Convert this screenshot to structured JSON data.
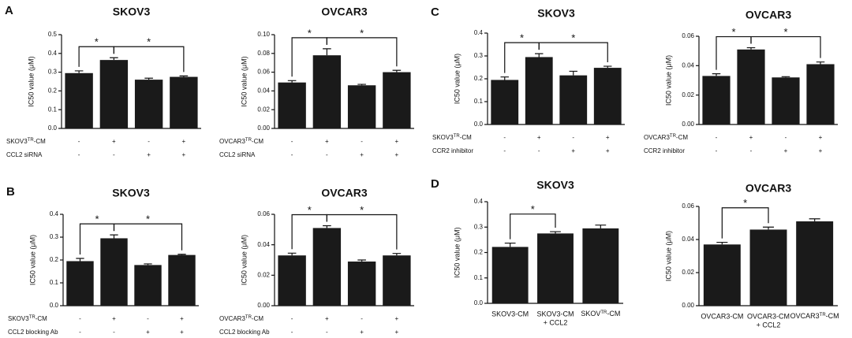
{
  "chart_data": [
    {
      "type": "bar",
      "panel": "A",
      "title": "SKOV3",
      "y_label": "IC50 value (μM)",
      "values": [
        0.295,
        0.365,
        0.26,
        0.275
      ],
      "errors": [
        0.012,
        0.012,
        0.008,
        0.005
      ],
      "color": "#1a1a1a",
      "ylim": [
        0,
        0.5
      ],
      "yticks": [
        {
          "value": 0,
          "label": "0.0"
        },
        0.1,
        0.2,
        0.3,
        0.4,
        0.5
      ],
      "brackets": [
        {
          "bars": [
            0,
            1
          ],
          "label": "*"
        },
        {
          "bars": [
            1,
            3
          ],
          "label": "*"
        }
      ],
      "rows": [
        {
          "label": {
            "main": "SKOV3",
            "sup": "TR",
            "rest": "-CM"
          },
          "signs": [
            "-",
            "+",
            "-",
            "+"
          ]
        },
        {
          "label": "CCL2 siRNA",
          "signs": [
            "-",
            "-",
            "+",
            "+"
          ]
        }
      ]
    },
    {
      "type": "bar",
      "title": "OVCAR3",
      "y_label": "IC50 value (μM)",
      "values": [
        0.049,
        0.078,
        0.046,
        0.06
      ],
      "errors": [
        0.002,
        0.007,
        0.001,
        0.002
      ],
      "color": "#1a1a1a",
      "ylim": [
        0,
        0.1
      ],
      "yticks": [
        {
          "value": 0,
          "label": "0.00"
        },
        0.02,
        0.04,
        0.06,
        0.08,
        {
          "value": 0.1,
          "label": "0.10"
        }
      ],
      "brackets": [
        {
          "bars": [
            0,
            1
          ],
          "label": "*"
        },
        {
          "bars": [
            1,
            3
          ],
          "label": "*"
        }
      ],
      "rows": [
        {
          "label": {
            "main": "OVCAR3",
            "sup": "TR",
            "rest": "-CM"
          },
          "signs": [
            "-",
            "+",
            "-",
            "+"
          ]
        },
        {
          "label": "CCL2 siRNA",
          "signs": [
            "-",
            "-",
            "+",
            "+"
          ]
        }
      ]
    },
    {
      "type": "bar",
      "panel": "B",
      "title": "SKOV3",
      "y_label": "IC50 value (μM)",
      "values": [
        0.195,
        0.295,
        0.178,
        0.222
      ],
      "errors": [
        0.012,
        0.015,
        0.005,
        0.003
      ],
      "color": "#1a1a1a",
      "ylim": [
        0,
        0.4
      ],
      "yticks": [
        {
          "value": 0,
          "label": "0.0"
        },
        0.1,
        0.2,
        0.3,
        0.4
      ],
      "brackets": [
        {
          "bars": [
            0,
            1
          ],
          "label": "*"
        },
        {
          "bars": [
            1,
            3
          ],
          "label": "*"
        }
      ],
      "rows": [
        {
          "label": {
            "main": "SKOV3",
            "sup": "TR",
            "rest": "-CM"
          },
          "signs": [
            "-",
            "+",
            "-",
            "+"
          ]
        },
        {
          "label": "CCL2 blocking Ab",
          "signs": [
            "-",
            "-",
            "+",
            "+"
          ]
        }
      ]
    },
    {
      "type": "bar",
      "title": "OVCAR3",
      "y_label": "IC50 value (μM)",
      "values": [
        0.033,
        0.051,
        0.029,
        0.033
      ],
      "errors": [
        0.0015,
        0.0015,
        0.001,
        0.0013
      ],
      "color": "#1a1a1a",
      "ylim": [
        0,
        0.06
      ],
      "yticks": [
        {
          "value": 0,
          "label": "0.00"
        },
        0.02,
        0.04,
        0.06
      ],
      "brackets": [
        {
          "bars": [
            0,
            1
          ],
          "label": "*"
        },
        {
          "bars": [
            1,
            3
          ],
          "label": "*"
        }
      ],
      "rows": [
        {
          "label": {
            "main": "OVCAR3",
            "sup": "TR",
            "rest": "-CM"
          },
          "signs": [
            "-",
            "+",
            "-",
            "+"
          ]
        },
        {
          "label": "CCL2 blocking Ab",
          "signs": [
            "-",
            "-",
            "+",
            "+"
          ]
        }
      ]
    },
    {
      "type": "bar",
      "panel": "C",
      "title": "SKOV3",
      "y_label": "IC50 value (μM)",
      "values": [
        0.195,
        0.295,
        0.215,
        0.248
      ],
      "errors": [
        0.013,
        0.015,
        0.018,
        0.007
      ],
      "color": "#1a1a1a",
      "ylim": [
        0,
        0.4
      ],
      "yticks": [
        {
          "value": 0,
          "label": "0.0"
        },
        0.1,
        0.2,
        0.3,
        0.4
      ],
      "brackets": [
        {
          "bars": [
            0,
            1
          ],
          "label": "*"
        },
        {
          "bars": [
            1,
            3
          ],
          "label": "*"
        }
      ],
      "rows": [
        {
          "label": {
            "main": "SKOV3",
            "sup": "TR",
            "rest": "-CM"
          },
          "signs": [
            "-",
            "+",
            "-",
            "+"
          ]
        },
        {
          "label": "CCR2 inhibitor",
          "signs": [
            "-",
            "-",
            "+",
            "+"
          ]
        }
      ]
    },
    {
      "type": "bar",
      "title": "OVCAR3",
      "y_label": "IC50 value (μM)",
      "values": [
        0.033,
        0.051,
        0.032,
        0.041
      ],
      "errors": [
        0.0015,
        0.0012,
        0.0005,
        0.0015
      ],
      "color": "#1a1a1a",
      "ylim": [
        0,
        0.06
      ],
      "yticks": [
        {
          "value": 0,
          "label": "0.00"
        },
        0.02,
        0.04,
        0.06
      ],
      "brackets": [
        {
          "bars": [
            0,
            1
          ],
          "label": "*"
        },
        {
          "bars": [
            1,
            3
          ],
          "label": "*"
        }
      ],
      "rows": [
        {
          "label": {
            "main": "OVCAR3",
            "sup": "TR",
            "rest": "-CM"
          },
          "signs": [
            "-",
            "+",
            "-",
            "+"
          ]
        },
        {
          "label": "CCR2 inhibitor",
          "signs": [
            "-",
            "-",
            "+",
            "+"
          ]
        }
      ]
    },
    {
      "type": "bar",
      "panel": "D",
      "title": "SKOV3",
      "y_label": "IC50 value (μM)",
      "categories": [
        "SKOV3-CM",
        [
          "SKOV3-CM",
          "+ CCL2"
        ],
        {
          "main": "SKOV",
          "sup": "TR",
          "rest": "-CM"
        }
      ],
      "values": [
        0.222,
        0.275,
        0.295
      ],
      "errors": [
        0.015,
        0.007,
        0.013
      ],
      "color": "#1a1a1a",
      "ylim": [
        0,
        0.4
      ],
      "yticks": [
        {
          "value": 0,
          "label": "0.0"
        },
        0.1,
        0.2,
        0.3,
        0.4
      ],
      "brackets": [
        {
          "bars": [
            0,
            1
          ],
          "label": "*"
        }
      ]
    },
    {
      "type": "bar",
      "title": "OVCAR3",
      "y_label": "IC50 value (μM)",
      "categories": [
        "OVCAR3-CM",
        [
          "OVCAR3-CM",
          "+ CCL2"
        ],
        {
          "main": "OVCAR3",
          "sup": "TR",
          "rest": "-CM"
        }
      ],
      "values": [
        0.037,
        0.046,
        0.051
      ],
      "errors": [
        0.0013,
        0.0015,
        0.0015
      ],
      "color": "#1a1a1a",
      "ylim": [
        0,
        0.06
      ],
      "yticks": [
        {
          "value": 0,
          "label": "0.00"
        },
        0.02,
        0.04,
        0.06
      ],
      "brackets": [
        {
          "bars": [
            0,
            1
          ],
          "label": "*"
        }
      ]
    }
  ]
}
